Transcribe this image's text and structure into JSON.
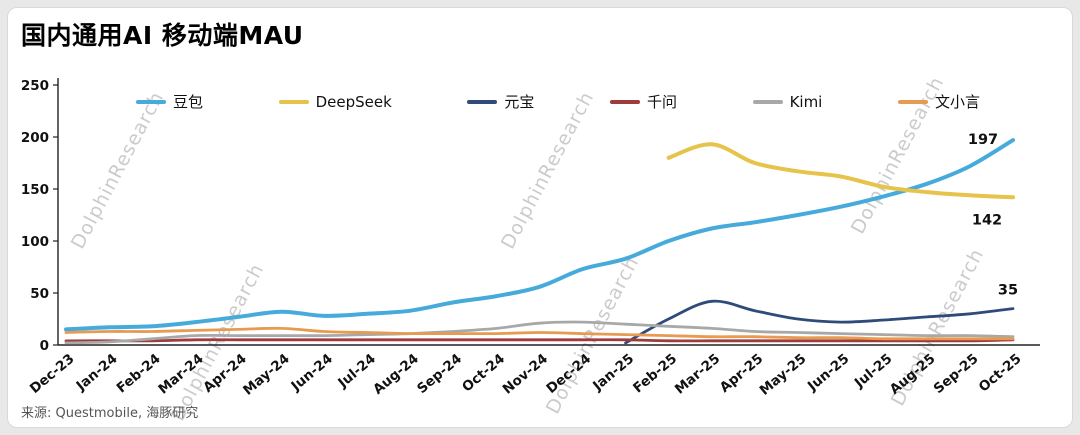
{
  "page": {
    "title": "国内通用AI 移动端MAU",
    "source": "来源: Questmobile, 海豚研究",
    "watermark": "DolphinResearch"
  },
  "chart_data": {
    "type": "line",
    "title": "国内通用AI 移动端MAU",
    "grid": false,
    "legend_position": "top",
    "ylim": [
      0,
      250
    ],
    "yticks": [
      0,
      50,
      100,
      150,
      200,
      250
    ],
    "categories": [
      "Dec-23",
      "Jan-24",
      "Feb-24",
      "Mar-24",
      "Apr-24",
      "May-24",
      "Jun-24",
      "Jul-24",
      "Aug-24",
      "Sep-24",
      "Oct-24",
      "Nov-24",
      "Dec-24",
      "Jan-25",
      "Feb-25",
      "Mar-25",
      "Apr-25",
      "May-25",
      "Jun-25",
      "Jul-25",
      "Aug-25",
      "Sep-25",
      "Oct-25"
    ],
    "series": [
      {
        "name": "豆包",
        "color": "#46ABDB",
        "values": [
          15,
          17,
          18,
          22,
          27,
          32,
          28,
          30,
          33,
          41,
          47,
          56,
          73,
          83,
          100,
          112,
          118,
          125,
          133,
          143,
          155,
          172,
          197
        ]
      },
      {
        "name": "DeepSeek",
        "color": "#E6C34A",
        "values": [
          null,
          null,
          null,
          null,
          null,
          null,
          null,
          null,
          null,
          null,
          null,
          null,
          null,
          null,
          180,
          193,
          175,
          167,
          162,
          152,
          147,
          144,
          142
        ]
      },
      {
        "name": "元宝",
        "color": "#2E4B7A",
        "values": [
          null,
          null,
          null,
          null,
          null,
          null,
          null,
          null,
          null,
          null,
          null,
          null,
          null,
          2,
          25,
          42,
          33,
          25,
          22,
          24,
          27,
          30,
          35
        ]
      },
      {
        "name": "千问",
        "color": "#9E3B3B",
        "values": [
          4,
          4,
          4,
          5,
          5,
          5,
          5,
          5,
          5,
          5,
          5,
          5,
          5,
          5,
          4,
          4,
          4,
          4,
          4,
          4,
          4,
          4,
          5
        ]
      },
      {
        "name": "Kimi",
        "color": "#A8A8A8",
        "values": [
          2,
          3,
          6,
          9,
          9,
          9,
          9,
          10,
          11,
          13,
          16,
          21,
          22,
          20,
          18,
          16,
          13,
          12,
          11,
          10,
          9,
          9,
          8
        ]
      },
      {
        "name": "文小言",
        "color": "#E79B50",
        "values": [
          12,
          13,
          13,
          14,
          15,
          16,
          13,
          12,
          11,
          11,
          11,
          12,
          11,
          10,
          9,
          8,
          8,
          7,
          7,
          6,
          6,
          6,
          6
        ]
      }
    ],
    "annotations": [
      {
        "series": "豆包",
        "text": "197"
      },
      {
        "series": "DeepSeek",
        "text": "142"
      },
      {
        "series": "元宝",
        "text": "35"
      }
    ]
  }
}
